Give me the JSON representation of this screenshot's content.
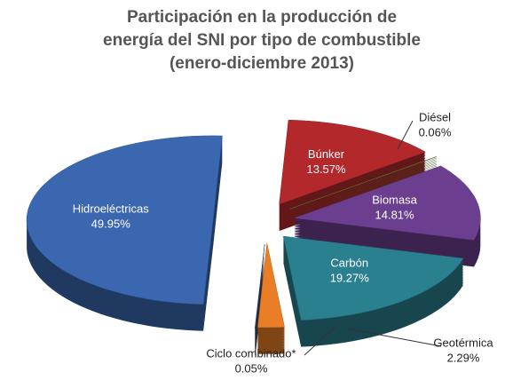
{
  "chart_data": {
    "type": "pie",
    "title": [
      "Participación en la producción de",
      "energía del SNI por tipo de combustible",
      "(enero-diciembre 2013)"
    ],
    "categories": [
      "Hidroeléctricas",
      "Búnker",
      "Diésel",
      "Biomasa",
      "Carbón",
      "Geotérmica",
      "Ciclo combinado*"
    ],
    "values": [
      49.95,
      13.57,
      0.06,
      14.81,
      19.27,
      2.29,
      0.05
    ],
    "value_labels": [
      "49.95%",
      "13.57%",
      "0.06%",
      "14.81%",
      "19.27%",
      "2.29%",
      "0.05%"
    ],
    "colors": [
      "#3b67b1",
      "#b3292b",
      "#6f8c3b",
      "#6b3e90",
      "#2b8090",
      "#e97e26",
      "#3e4b67"
    ]
  }
}
